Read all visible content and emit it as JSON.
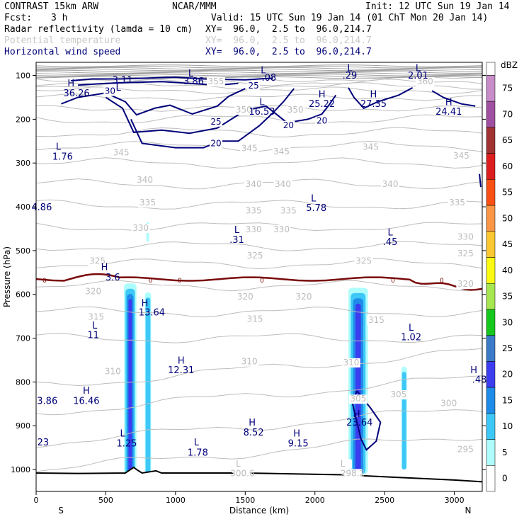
{
  "header": {
    "model": "CONTRAST 15km ARW",
    "org": "NCAR/MMM",
    "init": "Init: 12 UTC Sun 19 Jan 14",
    "fcst_label": "Fcst:",
    "fcst_value": "3 h",
    "valid": "Valid: 15 UTC Sun 19 Jan 14 (01 ChT Mon 20 Jan 14)",
    "fields": [
      {
        "name": "Radar reflectivity (lamda = 10 cm)",
        "xy": "XY=  96.0,  2.5 to  96.0,214.7",
        "color": "#000000"
      },
      {
        "name": "Potential temperature",
        "xy": "XY=  96.0,  2.5 to  96.0,214.7",
        "color": "#c8c8c8"
      },
      {
        "name": "Horizontal wind speed",
        "xy": "XY=  96.0,  2.5 to  96.0,214.7",
        "color": "#00007a"
      }
    ]
  },
  "chart_data": {
    "type": "cross-section",
    "xlabel": "Distance (km)",
    "ylabel": "Pressure (hPa)",
    "xlim": [
      0,
      3200
    ],
    "ylim": [
      1050,
      70
    ],
    "x_ticks": [
      "0",
      "500",
      "1000",
      "1500",
      "2000",
      "2500",
      "3000"
    ],
    "y_ticks": [
      "100",
      "200",
      "300",
      "400",
      "500",
      "600",
      "700",
      "800",
      "900",
      "1000"
    ],
    "x_end_labels": {
      "left": "S",
      "right": "N"
    },
    "colorbar": {
      "unit": "dBZ",
      "levels": [
        "0",
        "5",
        "10",
        "15",
        "20",
        "25",
        "30",
        "35",
        "40",
        "45",
        "50",
        "55",
        "60",
        "65",
        "70",
        "75"
      ],
      "colors": [
        "#ffffff",
        "#aefcfc",
        "#3ec8f8",
        "#1e8ce8",
        "#3c3cf0",
        "#3c7ac8",
        "#16c81e",
        "#a6e650",
        "#fafa14",
        "#fcc832",
        "#fa9646",
        "#fa5014",
        "#dc1e1e",
        "#a03232",
        "#a050a0",
        "#c88cc8"
      ]
    },
    "wind_labels": [
      {
        "text": "L",
        "x": 590,
        "p": 135
      },
      {
        "text": "3.11",
        "x": 620,
        "p": 118
      },
      {
        "text": "L",
        "x": 1110,
        "p": 102
      },
      {
        "text": "3.86",
        "x": 1130,
        "p": 120
      },
      {
        "text": "L",
        "x": 1630,
        "p": 95
      },
      {
        "text": ".08",
        "x": 1670,
        "p": 112
      },
      {
        "text": "L",
        "x": 2250,
        "p": 90
      },
      {
        "text": ".29",
        "x": 2250,
        "p": 107
      },
      {
        "text": "L",
        "x": 2740,
        "p": 90
      },
      {
        "text": "2.01",
        "x": 2740,
        "p": 107
      },
      {
        "text": "H",
        "x": 250,
        "p": 125
      },
      {
        "text": "36.26",
        "x": 290,
        "p": 148
      },
      {
        "text": "L",
        "x": 1620,
        "p": 168
      },
      {
        "text": "16.53",
        "x": 1620,
        "p": 190
      },
      {
        "text": "H",
        "x": 2050,
        "p": 150
      },
      {
        "text": "25.22",
        "x": 2050,
        "p": 172
      },
      {
        "text": "H",
        "x": 2420,
        "p": 150
      },
      {
        "text": "27.35",
        "x": 2420,
        "p": 172
      },
      {
        "text": "H",
        "x": 2960,
        "p": 168
      },
      {
        "text": "24.41",
        "x": 2960,
        "p": 190
      },
      {
        "text": "L",
        "x": 160,
        "p": 270
      },
      {
        "text": "1.76",
        "x": 190,
        "p": 292
      },
      {
        "text": "4.86",
        "x": 40,
        "p": 408
      },
      {
        "text": "L",
        "x": 1990,
        "p": 388
      },
      {
        "text": "5.78",
        "x": 2010,
        "p": 410
      },
      {
        "text": "L",
        "x": 1440,
        "p": 460
      },
      {
        "text": ".31",
        "x": 1440,
        "p": 482
      },
      {
        "text": "L",
        "x": 2540,
        "p": 465
      },
      {
        "text": ".45",
        "x": 2540,
        "p": 487
      },
      {
        "text": "H",
        "x": 490,
        "p": 545
      },
      {
        "text": "3.6",
        "x": 550,
        "p": 568
      },
      {
        "text": "H",
        "x": 780,
        "p": 627
      },
      {
        "text": "13.64",
        "x": 830,
        "p": 648
      },
      {
        "text": "L",
        "x": 420,
        "p": 678
      },
      {
        "text": "11",
        "x": 410,
        "p": 700
      },
      {
        "text": "L",
        "x": 2690,
        "p": 683
      },
      {
        "text": "1.02",
        "x": 2690,
        "p": 705
      },
      {
        "text": "H",
        "x": 1040,
        "p": 758
      },
      {
        "text": "12.31",
        "x": 1040,
        "p": 780
      },
      {
        "text": "H",
        "x": 3140,
        "p": 780
      },
      {
        "text": ".48",
        "x": 3180,
        "p": 802
      },
      {
        "text": "H",
        "x": 360,
        "p": 827
      },
      {
        "text": "16.46",
        "x": 360,
        "p": 850
      },
      {
        "text": "3.86",
        "x": 80,
        "p": 850
      },
      {
        "text": "H",
        "x": 2300,
        "p": 880
      },
      {
        "text": "23.64",
        "x": 2320,
        "p": 900
      },
      {
        "text": "H",
        "x": 1550,
        "p": 900
      },
      {
        "text": "8.52",
        "x": 1560,
        "p": 922
      },
      {
        "text": "H",
        "x": 1870,
        "p": 925
      },
      {
        "text": "9.15",
        "x": 1880,
        "p": 947
      },
      {
        "text": "L",
        "x": 620,
        "p": 925
      },
      {
        "text": "1.25",
        "x": 650,
        "p": 947
      },
      {
        "text": "L",
        "x": 1150,
        "p": 945
      },
      {
        "text": "1.78",
        "x": 1160,
        "p": 968
      },
      {
        "text": "23",
        "x": 50,
        "p": 945
      }
    ],
    "wind_contour_labels": [
      {
        "text": "25",
        "x": 1560,
        "p": 130
      },
      {
        "text": "30",
        "x": 530,
        "p": 142
      },
      {
        "text": "25",
        "x": 1290,
        "p": 212
      },
      {
        "text": "20",
        "x": 1810,
        "p": 220
      },
      {
        "text": "20",
        "x": 2050,
        "p": 210
      },
      {
        "text": "20",
        "x": 1290,
        "p": 262
      }
    ],
    "theta_labels": [
      {
        "text": "355",
        "x": 1290,
        "p": 120
      },
      {
        "text": "360",
        "x": 2790,
        "p": 120
      },
      {
        "text": "350",
        "x": 1490,
        "p": 185
      },
      {
        "text": "350",
        "x": 1860,
        "p": 185
      },
      {
        "text": "345",
        "x": 610,
        "p": 283
      },
      {
        "text": "345",
        "x": 1530,
        "p": 273
      },
      {
        "text": "345",
        "x": 1760,
        "p": 280
      },
      {
        "text": "345",
        "x": 2400,
        "p": 270
      },
      {
        "text": "345",
        "x": 3050,
        "p": 290
      },
      {
        "text": "340",
        "x": 780,
        "p": 345
      },
      {
        "text": "340",
        "x": 1560,
        "p": 355
      },
      {
        "text": "340",
        "x": 1770,
        "p": 355
      },
      {
        "text": "340",
        "x": 2540,
        "p": 355
      },
      {
        "text": "335",
        "x": 800,
        "p": 397
      },
      {
        "text": "335",
        "x": 1560,
        "p": 415
      },
      {
        "text": "335",
        "x": 1810,
        "p": 415
      },
      {
        "text": "335",
        "x": 3020,
        "p": 397
      },
      {
        "text": "330",
        "x": 750,
        "p": 455
      },
      {
        "text": "330",
        "x": 1560,
        "p": 458
      },
      {
        "text": "330",
        "x": 1760,
        "p": 458
      },
      {
        "text": "330",
        "x": 3080,
        "p": 475
      },
      {
        "text": "325",
        "x": 440,
        "p": 530
      },
      {
        "text": "325",
        "x": 1570,
        "p": 518
      },
      {
        "text": "325",
        "x": 2350,
        "p": 530
      },
      {
        "text": "325",
        "x": 3080,
        "p": 513
      },
      {
        "text": "320",
        "x": 410,
        "p": 600
      },
      {
        "text": "320",
        "x": 1500,
        "p": 612
      },
      {
        "text": "320",
        "x": 1920,
        "p": 612
      },
      {
        "text": "320",
        "x": 3080,
        "p": 583
      },
      {
        "text": "315",
        "x": 430,
        "p": 658
      },
      {
        "text": "315",
        "x": 1570,
        "p": 663
      },
      {
        "text": "315",
        "x": 2440,
        "p": 665
      },
      {
        "text": "310",
        "x": 550,
        "p": 782
      },
      {
        "text": "310",
        "x": 1530,
        "p": 760
      },
      {
        "text": "310",
        "x": 2260,
        "p": 762
      },
      {
        "text": "305",
        "x": 2310,
        "p": 845
      },
      {
        "text": "305",
        "x": 2600,
        "p": 835
      },
      {
        "text": "300",
        "x": 2960,
        "p": 855
      },
      {
        "text": "295",
        "x": 3080,
        "p": 960
      },
      {
        "text": "300.6",
        "x": 1480,
        "p": 1015
      },
      {
        "text": "L",
        "x": 1450,
        "p": 993
      },
      {
        "text": "298.2",
        "x": 2270,
        "p": 1015
      },
      {
        "text": "L",
        "x": 2200,
        "p": 993
      }
    ],
    "freezing_level_labels": [
      "0",
      "0",
      "0",
      "0",
      "0",
      "0"
    ],
    "reflectivity_columns": [
      {
        "x_start": 630,
        "x_end": 720,
        "p_top": 575,
        "p_bottom": 1010,
        "max_dbz": 20
      },
      {
        "x_start": 780,
        "x_end": 825,
        "p_top": 595,
        "p_bottom": 1010,
        "max_dbz": 10
      },
      {
        "x_start": 2240,
        "x_end": 2380,
        "p_top": 585,
        "p_bottom": 1010,
        "max_dbz": 20
      },
      {
        "x_start": 2620,
        "x_end": 2660,
        "p_top": 765,
        "p_bottom": 1000,
        "max_dbz": 10
      },
      {
        "x_start": 790,
        "x_end": 810,
        "p_top": 435,
        "p_bottom": 480,
        "max_dbz": 5
      }
    ]
  }
}
